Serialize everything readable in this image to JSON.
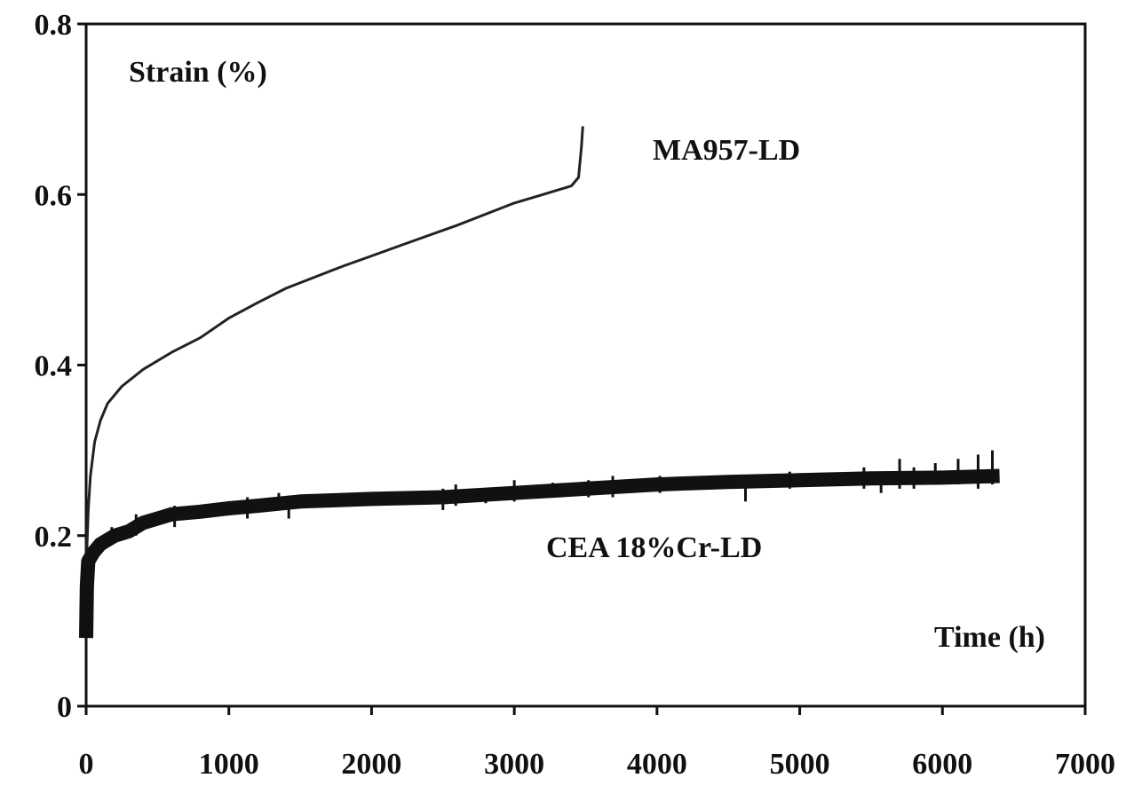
{
  "chart_data": {
    "type": "line",
    "title": "",
    "xlabel": "Time (h)",
    "ylabel": "Strain (%)",
    "xlim": [
      0,
      7000
    ],
    "ylim": [
      0,
      0.8
    ],
    "x_ticks": [
      0,
      1000,
      2000,
      3000,
      4000,
      5000,
      6000,
      7000
    ],
    "x_tick_labels": [
      "0",
      "1000",
      "2000",
      "3000",
      "4000",
      "5000",
      "6000",
      "7000"
    ],
    "y_ticks": [
      0,
      0.2,
      0.4,
      0.6,
      0.8
    ],
    "y_tick_labels": [
      "0",
      "0.2",
      "0.4",
      "0.6",
      "0.8"
    ],
    "grid": false,
    "legend": "none",
    "series": [
      {
        "name": "MA957-LD",
        "color": "#222222",
        "style": "smooth",
        "points": [
          [
            0,
            0.16
          ],
          [
            15,
            0.23
          ],
          [
            30,
            0.27
          ],
          [
            60,
            0.31
          ],
          [
            100,
            0.335
          ],
          [
            150,
            0.355
          ],
          [
            250,
            0.375
          ],
          [
            400,
            0.395
          ],
          [
            600,
            0.415
          ],
          [
            800,
            0.432
          ],
          [
            1000,
            0.455
          ],
          [
            1200,
            0.473
          ],
          [
            1400,
            0.49
          ],
          [
            1600,
            0.503
          ],
          [
            1800,
            0.516
          ],
          [
            2000,
            0.528
          ],
          [
            2200,
            0.54
          ],
          [
            2400,
            0.552
          ],
          [
            2600,
            0.564
          ],
          [
            2800,
            0.577
          ],
          [
            3000,
            0.59
          ],
          [
            3200,
            0.6
          ],
          [
            3400,
            0.61
          ],
          [
            3450,
            0.62
          ],
          [
            3470,
            0.655
          ],
          [
            3480,
            0.68
          ]
        ]
      },
      {
        "name": "CEA 18%Cr-LD",
        "color": "#111111",
        "style": "noisy",
        "points": [
          [
            0,
            0.08
          ],
          [
            5,
            0.14
          ],
          [
            15,
            0.17
          ],
          [
            50,
            0.18
          ],
          [
            100,
            0.19
          ],
          [
            200,
            0.2
          ],
          [
            300,
            0.205
          ],
          [
            400,
            0.215
          ],
          [
            500,
            0.22
          ],
          [
            600,
            0.225
          ],
          [
            800,
            0.228
          ],
          [
            1000,
            0.232
          ],
          [
            1200,
            0.235
          ],
          [
            1500,
            0.24
          ],
          [
            2000,
            0.243
          ],
          [
            2500,
            0.245
          ],
          [
            3000,
            0.25
          ],
          [
            3500,
            0.255
          ],
          [
            4000,
            0.26
          ],
          [
            4500,
            0.263
          ],
          [
            5000,
            0.265
          ],
          [
            5500,
            0.267
          ],
          [
            6000,
            0.268
          ],
          [
            6400,
            0.27
          ]
        ],
        "spikes": [
          [
            180,
            0.21,
            0.19
          ],
          [
            350,
            0.225,
            0.2
          ],
          [
            620,
            0.235,
            0.21
          ],
          [
            1130,
            0.245,
            0.22
          ],
          [
            1350,
            0.25,
            0.23
          ],
          [
            1420,
            0.24,
            0.22
          ],
          [
            2500,
            0.255,
            0.23
          ],
          [
            2590,
            0.26,
            0.235
          ],
          [
            2800,
            0.25,
            0.238
          ],
          [
            3000,
            0.265,
            0.24
          ],
          [
            3270,
            0.262,
            0.245
          ],
          [
            3520,
            0.265,
            0.245
          ],
          [
            3690,
            0.27,
            0.245
          ],
          [
            4020,
            0.27,
            0.25
          ],
          [
            4300,
            0.265,
            0.255
          ],
          [
            4620,
            0.26,
            0.24
          ],
          [
            4930,
            0.275,
            0.255
          ],
          [
            5450,
            0.28,
            0.255
          ],
          [
            5570,
            0.275,
            0.25
          ],
          [
            5700,
            0.29,
            0.255
          ],
          [
            5800,
            0.28,
            0.255
          ],
          [
            5950,
            0.285,
            0.26
          ],
          [
            6110,
            0.29,
            0.26
          ],
          [
            6250,
            0.295,
            0.255
          ],
          [
            6350,
            0.3,
            0.26
          ]
        ]
      }
    ],
    "annotations": [
      {
        "text": "Strain (%)",
        "role": "ylabel"
      },
      {
        "text": "MA957-LD",
        "role": "series-label"
      },
      {
        "text": "CEA 18%Cr-LD",
        "role": "series-label"
      },
      {
        "text": "Time (h)",
        "role": "xlabel"
      }
    ]
  }
}
